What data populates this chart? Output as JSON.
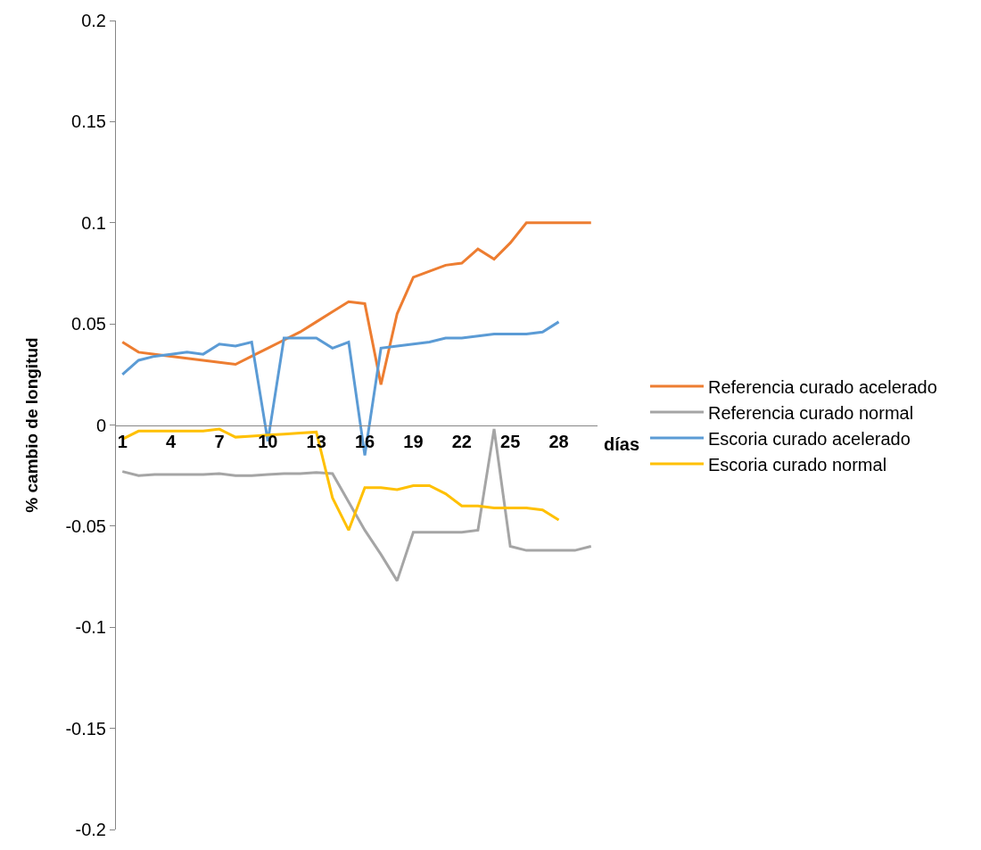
{
  "chart_data": {
    "type": "line",
    "xlabel": "días",
    "ylabel": "% cambio de longitud",
    "categories": [
      "1",
      null,
      null,
      "4",
      null,
      null,
      "7",
      null,
      null,
      "10",
      null,
      null,
      "13",
      null,
      null,
      "16",
      null,
      null,
      "19",
      null,
      null,
      "22",
      null,
      null,
      "25",
      null,
      null,
      "28",
      null,
      null
    ],
    "series": [
      {
        "name": "Referencia curado acelerado",
        "color": "#ed7d31",
        "values": [
          0.041,
          0.036,
          0.035,
          0.034,
          0.033,
          0.032,
          0.031,
          0.03,
          0.034,
          0.038,
          0.042,
          0.046,
          0.051,
          0.056,
          0.061,
          0.06,
          0.02,
          0.055,
          0.073,
          0.076,
          0.079,
          0.08,
          0.087,
          0.082,
          0.09,
          0.1,
          0.1,
          0.1,
          0.1,
          0.1
        ]
      },
      {
        "name": "Referencia curado normal",
        "color": "#a5a5a5",
        "values": [
          -0.023,
          -0.025,
          -0.0245,
          -0.0245,
          -0.0245,
          -0.0245,
          -0.024,
          -0.025,
          -0.025,
          -0.0245,
          -0.024,
          -0.024,
          -0.0235,
          -0.024,
          -0.038,
          -0.052,
          -0.064,
          -0.077,
          -0.053,
          -0.053,
          -0.053,
          -0.053,
          -0.052,
          -0.002,
          -0.06,
          -0.062,
          -0.062,
          -0.062,
          -0.062,
          -0.06
        ]
      },
      {
        "name": "Escoria curado acelerado",
        "color": "#5b9bd5",
        "values": [
          0.025,
          0.032,
          0.034,
          0.035,
          0.036,
          0.035,
          0.04,
          0.039,
          0.041,
          -0.008,
          0.043,
          0.043,
          0.043,
          0.038,
          0.041,
          -0.015,
          0.038,
          0.039,
          0.04,
          0.041,
          0.043,
          0.043,
          0.044,
          0.045,
          0.045,
          0.045,
          0.046,
          0.051,
          null,
          null
        ]
      },
      {
        "name": "Escoria curado normal",
        "color": "#ffc000",
        "values": [
          -0.007,
          -0.003,
          -0.003,
          -0.003,
          -0.003,
          -0.003,
          -0.002,
          -0.006,
          -0.0055,
          -0.005,
          -0.0045,
          -0.004,
          -0.0035,
          -0.036,
          -0.052,
          -0.031,
          -0.031,
          -0.032,
          -0.03,
          -0.03,
          -0.034,
          -0.04,
          -0.04,
          -0.041,
          -0.041,
          -0.041,
          -0.042,
          -0.047,
          null,
          null
        ]
      }
    ],
    "ylim": [
      -0.2,
      0.2
    ],
    "yticks": [
      -0.2,
      -0.15,
      -0.1,
      -0.05,
      0,
      0.05,
      0.1,
      0.15,
      0.2
    ],
    "legend": "right",
    "marker": "none",
    "line_style": "solid"
  }
}
